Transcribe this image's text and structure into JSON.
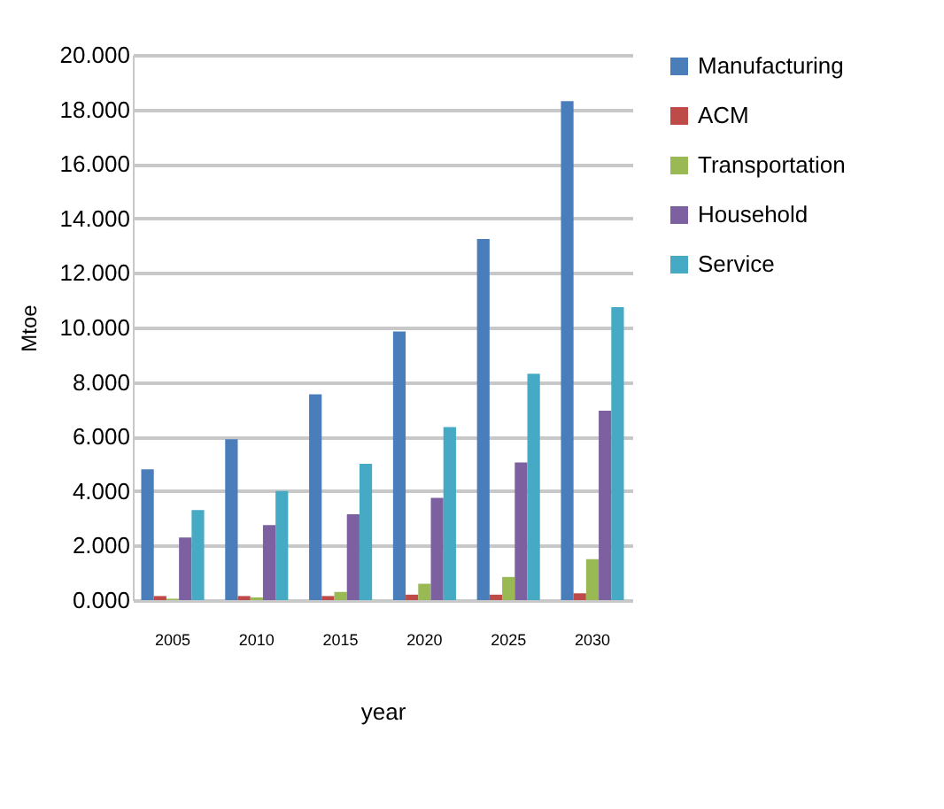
{
  "chart_data": {
    "type": "bar",
    "xlabel": "year",
    "ylabel": "Mtoe",
    "categories": [
      "2005",
      "2010",
      "2015",
      "2020",
      "2025",
      "2030"
    ],
    "series": [
      {
        "name": "Manufacturing",
        "color": "#4a7ebb",
        "values": [
          4.8,
          5.9,
          7.55,
          9.85,
          13.25,
          18.3
        ]
      },
      {
        "name": "ACM",
        "color": "#be4b48",
        "values": [
          0.15,
          0.15,
          0.15,
          0.2,
          0.2,
          0.25
        ]
      },
      {
        "name": "Transportation",
        "color": "#98b954",
        "values": [
          0.05,
          0.1,
          0.3,
          0.6,
          0.85,
          1.5
        ]
      },
      {
        "name": "Household",
        "color": "#7d60a0",
        "values": [
          2.3,
          2.75,
          3.15,
          3.75,
          5.05,
          6.95
        ]
      },
      {
        "name": "Service",
        "color": "#46aac5",
        "values": [
          3.3,
          4.0,
          5.0,
          6.35,
          8.3,
          10.75
        ]
      }
    ],
    "ylim": [
      0,
      20
    ],
    "yticks": [
      {
        "value": 0,
        "label": "0.000"
      },
      {
        "value": 2,
        "label": "2.000"
      },
      {
        "value": 4,
        "label": "4.000"
      },
      {
        "value": 6,
        "label": "6.000"
      },
      {
        "value": 8,
        "label": "8.000"
      },
      {
        "value": 10,
        "label": "10.000"
      },
      {
        "value": 12,
        "label": "12.000"
      },
      {
        "value": 14,
        "label": "14.000"
      },
      {
        "value": 16,
        "label": "16.000"
      },
      {
        "value": 18,
        "label": "18.000"
      },
      {
        "value": 20,
        "label": "20.000"
      }
    ],
    "grid": "y",
    "legend": "right"
  }
}
